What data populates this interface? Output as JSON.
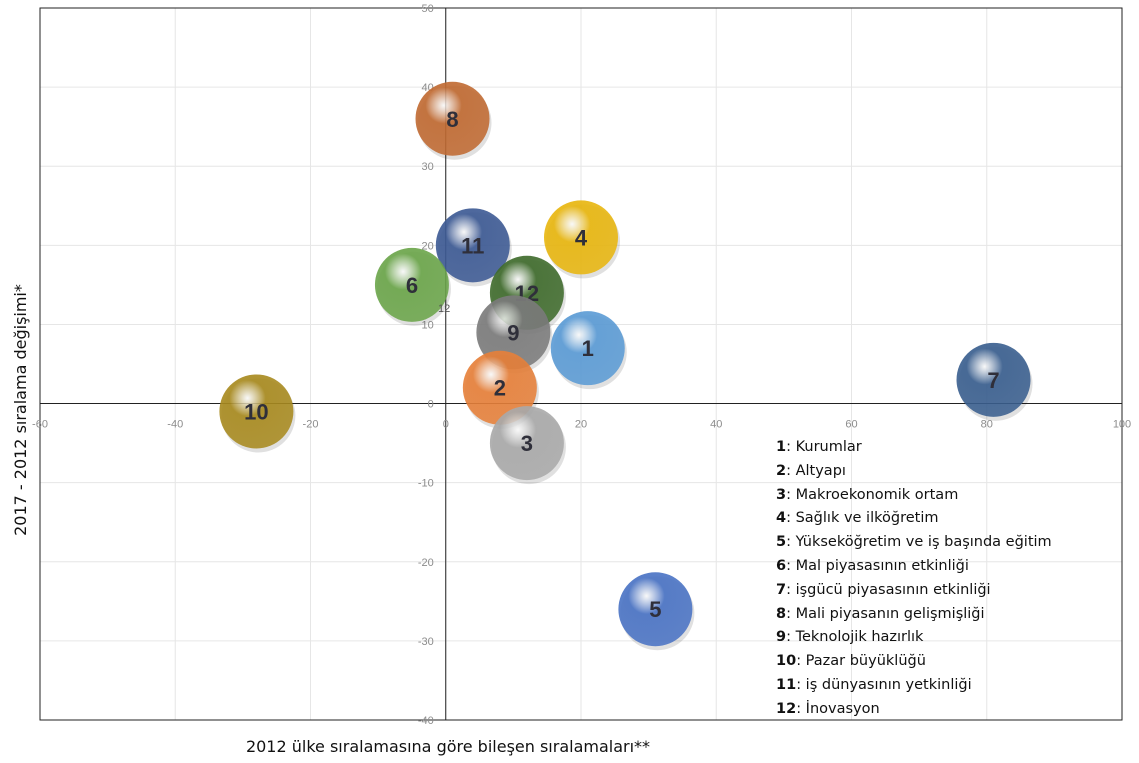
{
  "chart_data": {
    "type": "scatter",
    "xlabel": "2012 ülke sıralamasına göre bileşen sıralamaları**",
    "ylabel": "2017 - 2012 sıralama değişimi*",
    "xlim": [
      -60,
      100
    ],
    "ylim": [
      -40,
      50
    ],
    "xticks": [
      -60,
      -40,
      -20,
      0,
      20,
      40,
      60,
      80,
      100
    ],
    "yticks": [
      -40,
      -30,
      -20,
      -10,
      0,
      10,
      20,
      30,
      40,
      50
    ],
    "grid": true,
    "stray_label": "12",
    "points": [
      {
        "label": "8",
        "x": 1,
        "y": 36,
        "color": "#c06a32"
      },
      {
        "label": "11",
        "x": 4,
        "y": 20,
        "color": "#3d5a94"
      },
      {
        "label": "4",
        "x": 20,
        "y": 21,
        "color": "#e8b60f"
      },
      {
        "label": "6",
        "x": -5,
        "y": 15,
        "color": "#6ba54a"
      },
      {
        "label": "12",
        "x": 12,
        "y": 14,
        "color": "#3f6b2c"
      },
      {
        "label": "9",
        "x": 10,
        "y": 9,
        "color": "#7b7b7b"
      },
      {
        "label": "1",
        "x": 21,
        "y": 7,
        "color": "#5b9bd5"
      },
      {
        "label": "7",
        "x": 81,
        "y": 3,
        "color": "#3a5f8f"
      },
      {
        "label": "2",
        "x": 8,
        "y": 2,
        "color": "#e6803a"
      },
      {
        "label": "10",
        "x": -28,
        "y": -1,
        "color": "#a88a1f"
      },
      {
        "label": "3",
        "x": 12,
        "y": -5,
        "color": "#a9a9a9"
      },
      {
        "label": "5",
        "x": 31,
        "y": -26,
        "color": "#4a73c4"
      }
    ],
    "legend": [
      {
        "num": "1",
        "text": ": Kurumlar"
      },
      {
        "num": "2",
        "text": ": Altyapı"
      },
      {
        "num": "3",
        "text": ": Makroekonomik ortam"
      },
      {
        "num": "4",
        "text": ": Sağlık ve ilköğretim"
      },
      {
        "num": "5",
        "text": ": Yükseköğretim ve iş başında eğitim"
      },
      {
        "num": "6",
        "text": ": Mal piyasasının etkinliği"
      },
      {
        "num": "7",
        "text": ": işgücü piyasasının etkinliği"
      },
      {
        "num": "8",
        "text": ": Mali piyasanın gelişmişliği"
      },
      {
        "num": "9",
        "text": ": Teknolojik hazırlık"
      },
      {
        "num": "10",
        "text": ": Pazar büyüklüğü"
      },
      {
        "num": "11",
        "text": ": iş dünyasının yetkinliği"
      },
      {
        "num": "12",
        "text": ": İnovasyon"
      }
    ]
  }
}
